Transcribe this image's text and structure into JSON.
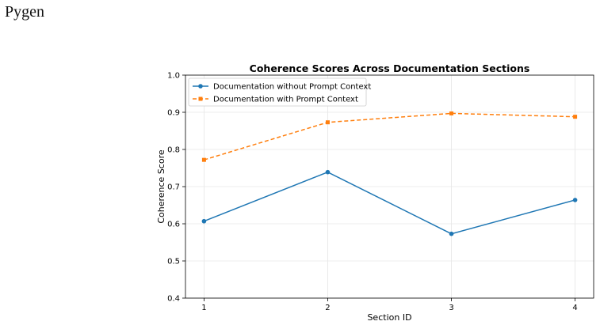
{
  "page": {
    "brand": "Pygen"
  },
  "chart_data": {
    "type": "line",
    "title": "Coherence Scores Across Documentation Sections",
    "xlabel": "Section ID",
    "ylabel": "Coherence Score",
    "x": [
      1,
      2,
      3,
      4
    ],
    "xticks": [
      "1",
      "2",
      "3",
      "4"
    ],
    "ylim": [
      0.4,
      1.0
    ],
    "yticks": [
      "0.4",
      "0.5",
      "0.6",
      "0.7",
      "0.8",
      "0.9",
      "1.0"
    ],
    "grid": true,
    "legend_position": "top-left",
    "series": [
      {
        "name": "Documentation without Prompt Context",
        "values": [
          0.607,
          0.739,
          0.573,
          0.664
        ],
        "color": "#1f77b4",
        "line_style": "solid",
        "marker": "circle"
      },
      {
        "name": "Documentation with Prompt Context",
        "values": [
          0.772,
          0.873,
          0.897,
          0.888
        ],
        "color": "#ff7f0e",
        "line_style": "dashed",
        "marker": "square"
      }
    ]
  }
}
